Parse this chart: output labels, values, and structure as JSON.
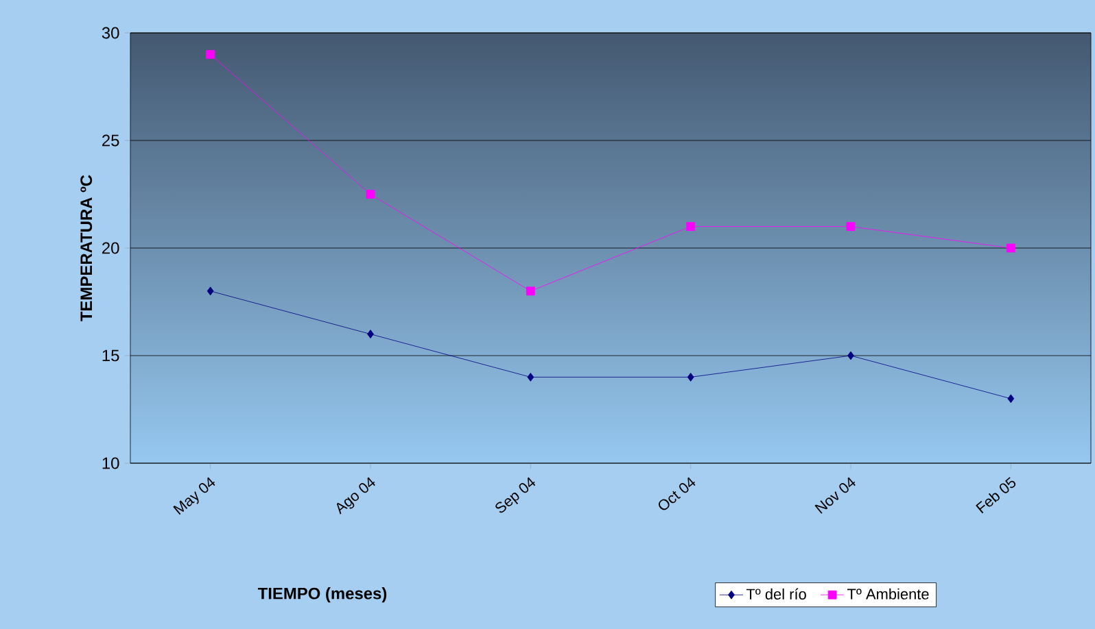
{
  "chart_data": {
    "type": "line",
    "xlabel": "TIEMPO (meses)",
    "ylabel": "TEMPERATURA ºC",
    "categories": [
      "May 04",
      "Ago 04",
      "Sep 04",
      "Oct 04",
      "Nov 04",
      "Feb 05"
    ],
    "series": [
      {
        "name": "Tº del río",
        "color": "#000080",
        "marker": "diamond",
        "values": [
          18,
          16,
          14,
          14,
          15,
          13
        ]
      },
      {
        "name": "Tº Ambiente",
        "color": "#ff00ff",
        "marker": "square",
        "values": [
          29,
          22.5,
          18,
          21,
          21,
          20
        ]
      }
    ],
    "ylim": [
      10,
      30
    ],
    "yticks": [
      10,
      15,
      20,
      25,
      30
    ],
    "grid": "y",
    "legend": "bottom right",
    "line_style": "solid"
  }
}
